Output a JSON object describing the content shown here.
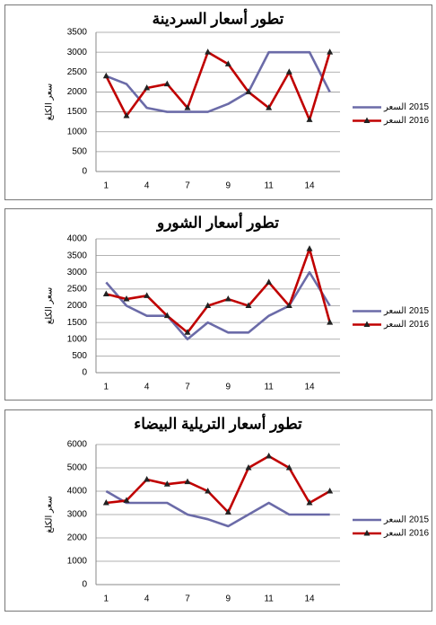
{
  "chart_data": [
    {
      "type": "line",
      "title": "تطور أسعار السردينة",
      "y_label": "سعر الكلغ",
      "categories": [
        "1",
        null,
        "4",
        null,
        "7",
        null,
        "9",
        null,
        "11",
        null,
        "14",
        null
      ],
      "series": [
        {
          "name": "2015 السعر",
          "color": "#6b6ba8",
          "values": [
            2400,
            2200,
            1600,
            1500,
            1500,
            1500,
            1700,
            2000,
            3000,
            3000,
            3000,
            2000
          ]
        },
        {
          "name": "2016 السعر",
          "color": "#c00000",
          "marker": "triangle",
          "values": [
            2400,
            1400,
            2100,
            2200,
            1600,
            3000,
            2700,
            2000,
            1600,
            2500,
            1300,
            3000
          ]
        }
      ],
      "ylim": [
        0,
        3500
      ],
      "yticks": [
        0,
        500,
        1000,
        1500,
        2000,
        2500,
        3000,
        3500
      ],
      "grid": true,
      "legend": "right"
    },
    {
      "type": "line",
      "title": "تطور أسعار الشورو",
      "y_label": "سعر الكلغ",
      "categories": [
        "1",
        null,
        "4",
        null,
        "7",
        null,
        "9",
        null,
        "11",
        null,
        "14",
        null
      ],
      "series": [
        {
          "name": "2015 السعر",
          "color": "#6b6ba8",
          "values": [
            2700,
            2000,
            1700,
            1700,
            1000,
            1500,
            1200,
            1200,
            1700,
            2000,
            3000,
            2000
          ]
        },
        {
          "name": "2016 السعر",
          "color": "#c00000",
          "marker": "triangle",
          "values": [
            2350,
            2200,
            2300,
            1700,
            1200,
            2000,
            2200,
            2000,
            2700,
            2000,
            3700,
            1500
          ]
        }
      ],
      "ylim": [
        0,
        4000
      ],
      "yticks": [
        0,
        500,
        1000,
        1500,
        2000,
        2500,
        3000,
        3500,
        4000
      ],
      "grid": true,
      "legend": "right"
    },
    {
      "type": "line",
      "title": "تطور أسعار التريلية البيضاء",
      "y_label": "سعر الكلغ",
      "categories": [
        "1",
        null,
        "4",
        null,
        "7",
        null,
        "9",
        null,
        "11",
        null,
        "14",
        null
      ],
      "series": [
        {
          "name": "2015 السعر",
          "color": "#6b6ba8",
          "values": [
            4000,
            3500,
            3500,
            3500,
            3000,
            2800,
            2500,
            3000,
            3500,
            3000,
            3000,
            3000
          ]
        },
        {
          "name": "2016 السعر",
          "color": "#c00000",
          "marker": "triangle",
          "values": [
            3500,
            3600,
            4500,
            4300,
            4400,
            4000,
            3100,
            5000,
            5500,
            5000,
            3500,
            4000
          ]
        }
      ],
      "ylim": [
        0,
        6000
      ],
      "yticks": [
        0,
        1000,
        2000,
        3000,
        4000,
        5000,
        6000
      ],
      "grid": true,
      "legend": "right"
    }
  ]
}
